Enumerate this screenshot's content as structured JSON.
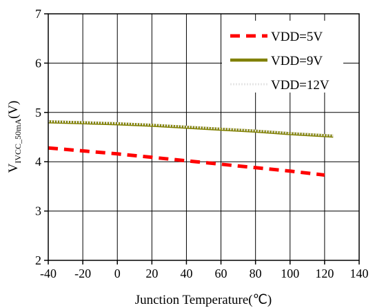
{
  "chart_data": {
    "type": "line",
    "title": "",
    "xlabel": "Junction Temperature(℃)",
    "ylabel": {
      "main": "V",
      "subscript": "IVCC_50mA",
      "suffix": "(V)"
    },
    "xlim": [
      -40,
      140
    ],
    "ylim": [
      2,
      7
    ],
    "xticks": [
      -40,
      -20,
      0,
      20,
      40,
      60,
      80,
      100,
      120,
      140
    ],
    "yticks": [
      2,
      3,
      4,
      5,
      6,
      7
    ],
    "grid": true,
    "legend_position": "top-right",
    "series": [
      {
        "name": "VDD=5V",
        "color": "#ff0000",
        "style": "dashed",
        "points": [
          [
            -40,
            4.28
          ],
          [
            -20,
            4.22
          ],
          [
            0,
            4.16
          ],
          [
            20,
            4.09
          ],
          [
            40,
            4.02
          ],
          [
            60,
            3.95
          ],
          [
            80,
            3.88
          ],
          [
            100,
            3.81
          ],
          [
            120,
            3.73
          ]
        ]
      },
      {
        "name": "VDD=9V",
        "color": "#808000",
        "style": "solid",
        "points": [
          [
            -40,
            4.81
          ],
          [
            -20,
            4.79
          ],
          [
            0,
            4.77
          ],
          [
            20,
            4.74
          ],
          [
            40,
            4.7
          ],
          [
            60,
            4.66
          ],
          [
            80,
            4.62
          ],
          [
            100,
            4.57
          ],
          [
            125,
            4.52
          ]
        ]
      },
      {
        "name": "VDD=12V",
        "color": "#e6e6e6",
        "style": "dotted",
        "points": [
          [
            -40,
            4.82
          ],
          [
            -20,
            4.8
          ],
          [
            0,
            4.78
          ],
          [
            20,
            4.75
          ],
          [
            40,
            4.71
          ],
          [
            60,
            4.67
          ],
          [
            80,
            4.63
          ],
          [
            100,
            4.58
          ],
          [
            125,
            4.53
          ]
        ]
      }
    ]
  }
}
